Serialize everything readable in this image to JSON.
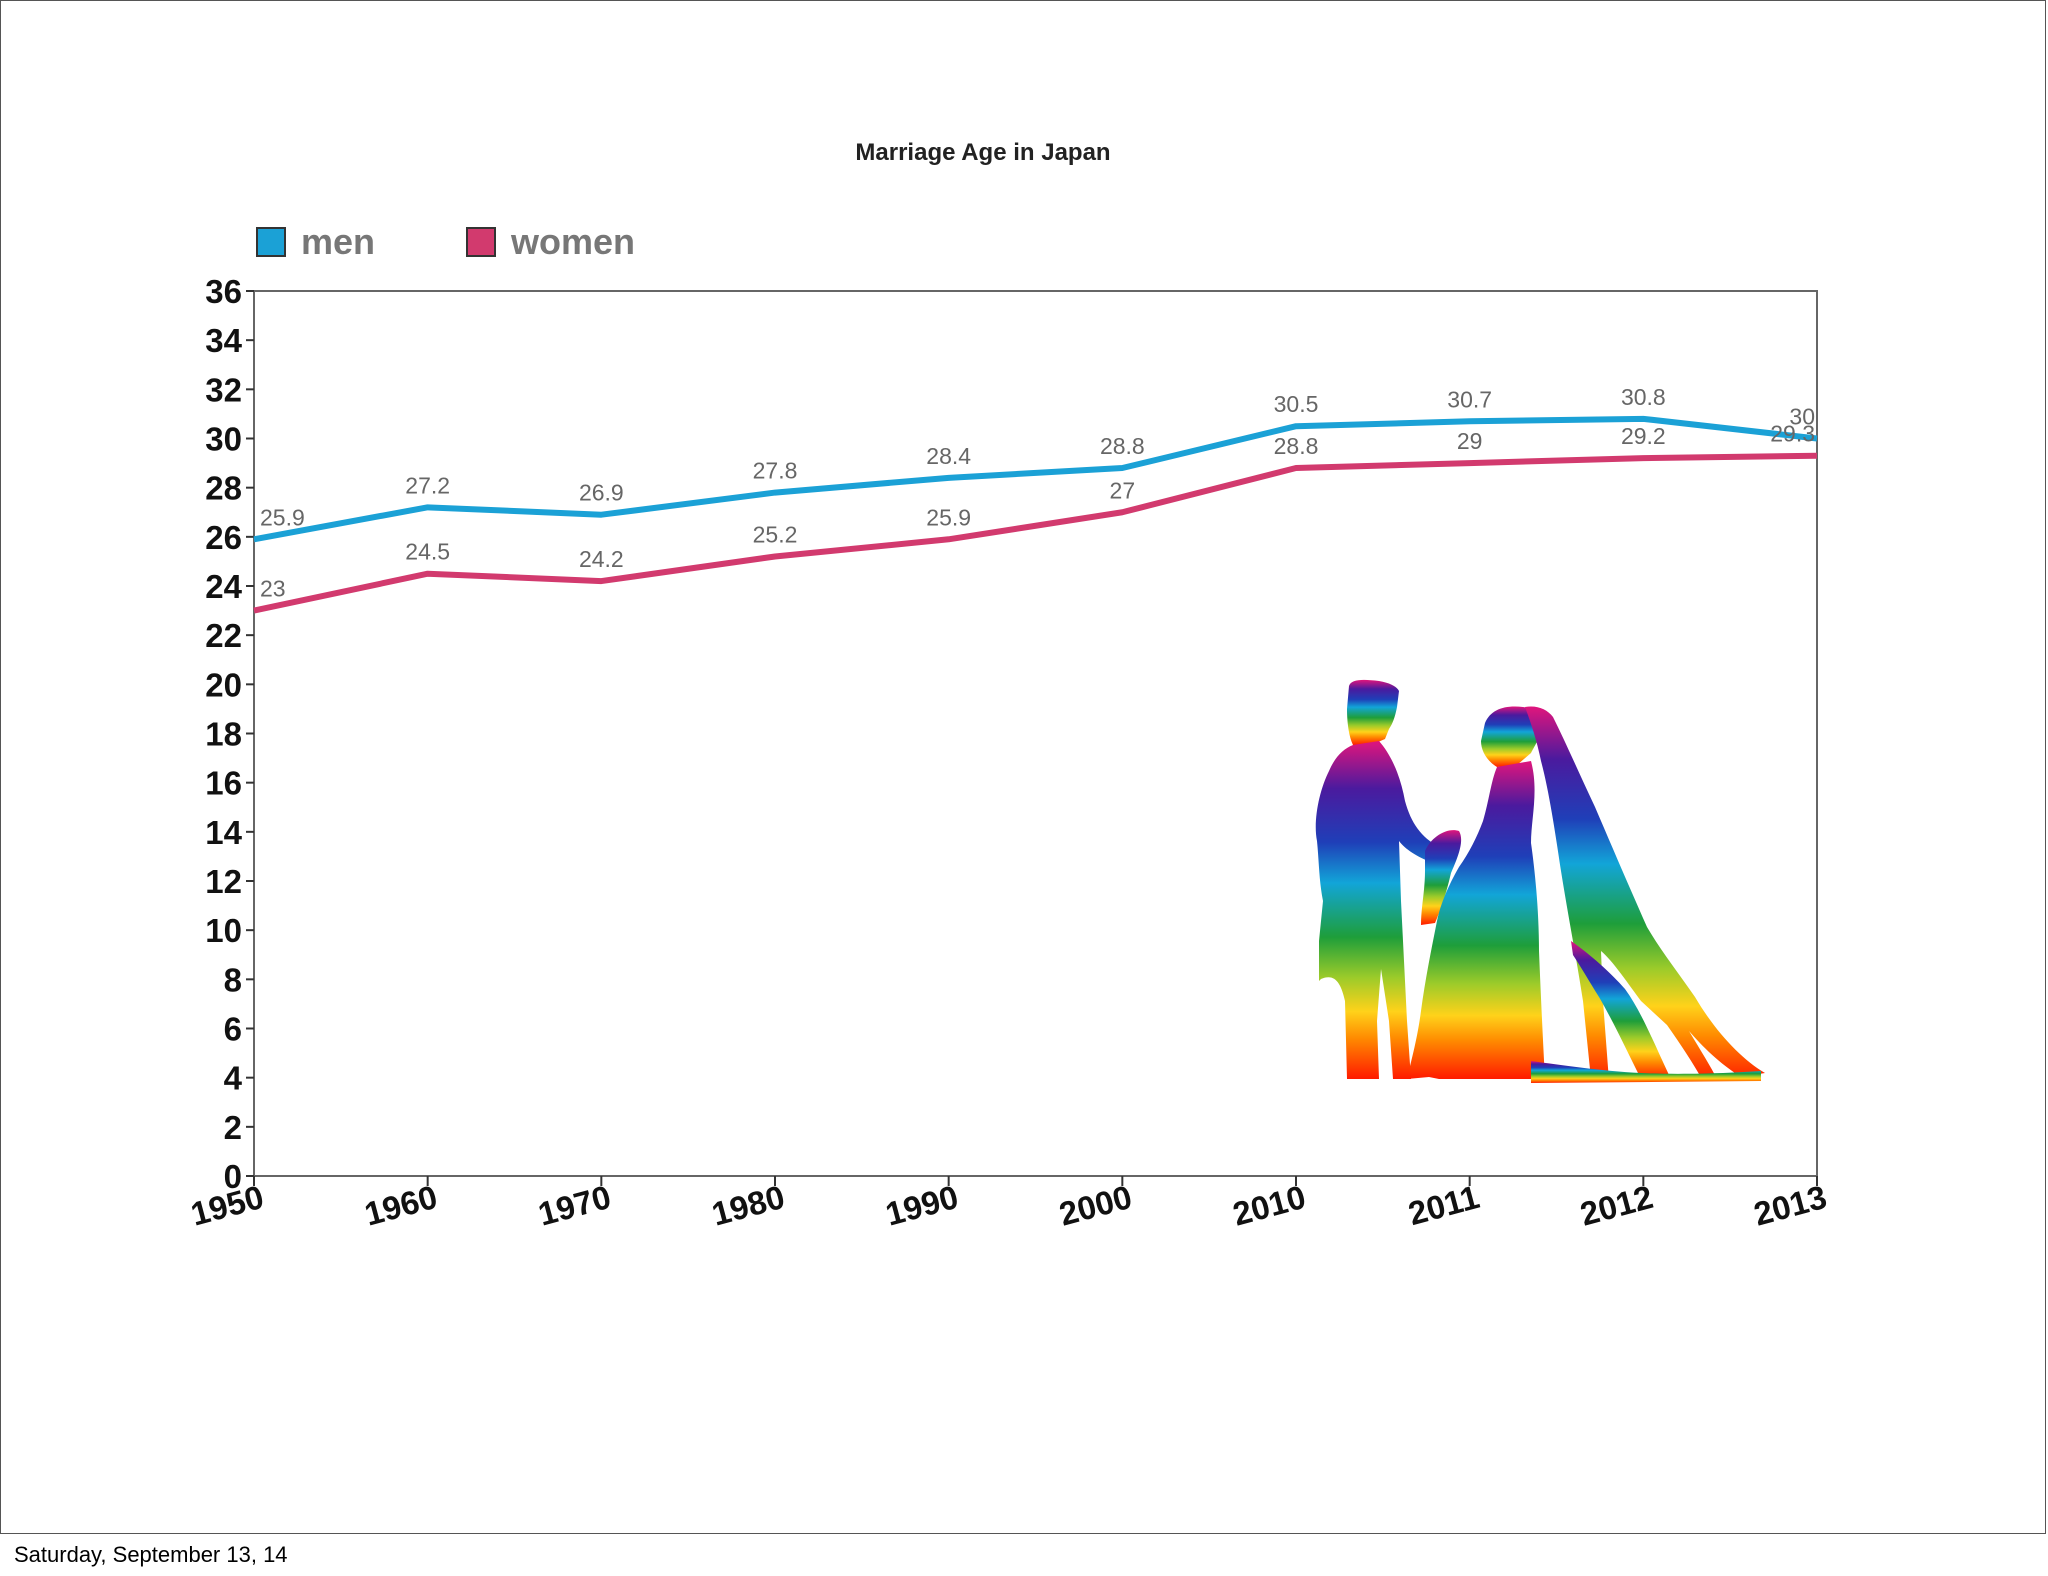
{
  "chart_data": {
    "type": "line",
    "title": "Marriage Age in Japan",
    "x": [
      "1950",
      "1960",
      "1970",
      "1980",
      "1990",
      "2000",
      "2010",
      "2011",
      "2012",
      "2013"
    ],
    "ylim": [
      0,
      36
    ],
    "yticks": [
      0,
      2,
      4,
      6,
      8,
      10,
      12,
      14,
      16,
      18,
      20,
      22,
      24,
      26,
      28,
      30,
      32,
      34,
      36
    ],
    "legend_position": "top-left",
    "grid": false,
    "series": [
      {
        "name": "men",
        "color": "#1ba1d6",
        "values": [
          25.9,
          27.2,
          26.9,
          27.8,
          28.4,
          28.8,
          30.5,
          30.7,
          30.8,
          30
        ]
      },
      {
        "name": "women",
        "color": "#d23a6e",
        "values": [
          23,
          24.5,
          24.2,
          25.2,
          25.9,
          27,
          28.8,
          29,
          29.2,
          29.3
        ]
      }
    ]
  },
  "footer": {
    "date": "Saturday, September 13, 14"
  },
  "illustration": {
    "icon": "bride-and-groom-silhouette-icon"
  }
}
